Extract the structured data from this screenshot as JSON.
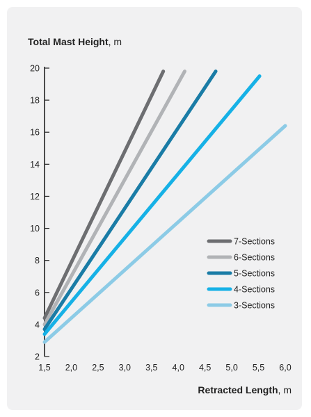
{
  "chart_data": {
    "type": "line",
    "ylabel_bold": "Total Mast Height",
    "ylabel_unit": ", m",
    "xlabel_bold": "Retracted Length",
    "xlabel_unit": ", m",
    "xlim": [
      1.5,
      6.0
    ],
    "ylim": [
      2,
      20
    ],
    "xticks": [
      "1,5",
      "2,0",
      "2,5",
      "3,0",
      "3,5",
      "4,0",
      "4,5",
      "5,0",
      "5,5",
      "6,0"
    ],
    "yticks": [
      "2",
      "4",
      "6",
      "8",
      "10",
      "12",
      "14",
      "16",
      "18",
      "20"
    ],
    "grid": false,
    "legend_position": "right",
    "series": [
      {
        "name": "7-Sections",
        "color": "#6d6e71",
        "x": [
          1.5,
          3.72
        ],
        "y": [
          4.4,
          19.8
        ]
      },
      {
        "name": "6-Sections",
        "color": "#b1b3b6",
        "x": [
          1.5,
          4.12
        ],
        "y": [
          4.0,
          19.8
        ]
      },
      {
        "name": "5-Sections",
        "color": "#1a7ca6",
        "x": [
          1.5,
          4.7
        ],
        "y": [
          3.7,
          19.8
        ]
      },
      {
        "name": "4-Sections",
        "color": "#16b1e6",
        "x": [
          1.5,
          5.52
        ],
        "y": [
          3.4,
          19.5
        ]
      },
      {
        "name": "3-Sections",
        "color": "#8ccbe6",
        "x": [
          1.5,
          6.0
        ],
        "y": [
          2.9,
          16.4
        ]
      }
    ]
  }
}
